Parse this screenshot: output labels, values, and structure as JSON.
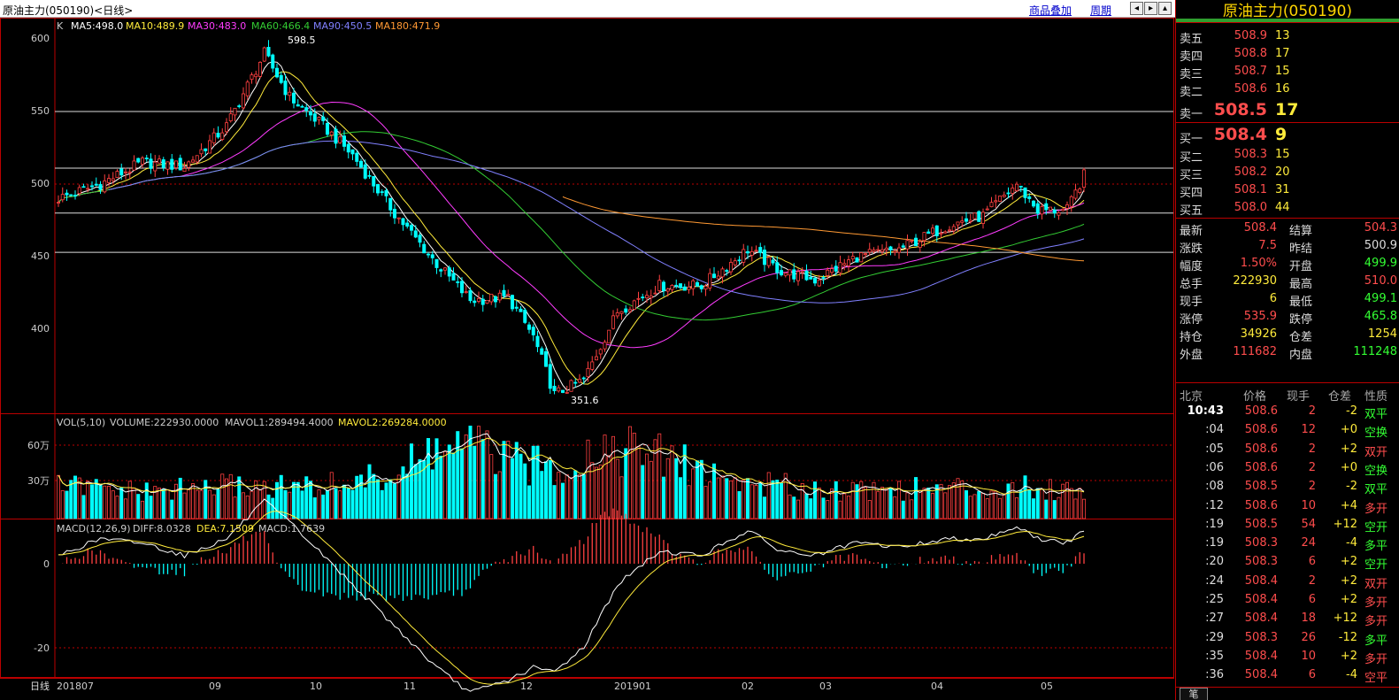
{
  "title": "原油主力(050190)<日线>",
  "toolbar": {
    "overlay": "商品叠加",
    "period": "周期"
  },
  "main_panel": {
    "indicator_label": "K",
    "ma": [
      {
        "label": "MA5:498.0",
        "color": "#ffffff"
      },
      {
        "label": "MA10:489.9",
        "color": "#ffeb3b"
      },
      {
        "label": "MA30:483.0",
        "color": "#ff3cff"
      },
      {
        "label": "MA60:466.4",
        "color": "#33cc33"
      },
      {
        "label": "MA90:450.5",
        "color": "#8080ff"
      },
      {
        "label": "MA180:471.9",
        "color": "#ff9933"
      }
    ],
    "high_label": "598.5",
    "low_label": "351.6",
    "y_ticks": [
      "600",
      "550",
      "500",
      "450",
      "400"
    ]
  },
  "volume_panel": {
    "label": "VOL(5,10)",
    "volume": "VOLUME:222930.0000",
    "mavol1": "MAVOL1:289494.4000",
    "mavol2": "MAVOL2:269284.0000",
    "y_ticks": [
      "60万",
      "30万"
    ]
  },
  "macd_panel": {
    "label": "MACD(12,26,9)",
    "diff": "DIFF:8.0328",
    "dea": "DEA:7.1509",
    "macd": "MACD:1.7639",
    "y_ticks": [
      "0",
      "-20"
    ]
  },
  "x_axis": {
    "period_label": "日线",
    "labels": [
      "201807",
      "09",
      "10",
      "11",
      "12",
      "201901",
      "02",
      "03",
      "04",
      "05"
    ]
  },
  "chart_data": {
    "type": "candlestick",
    "ylim": [
      340,
      608
    ],
    "hlines": [
      550,
      511,
      480,
      453
    ],
    "anchors": [
      [
        0,
        490
      ],
      [
        10,
        500
      ],
      [
        20,
        515
      ],
      [
        30,
        512
      ],
      [
        40,
        540
      ],
      [
        49,
        590
      ],
      [
        55,
        560
      ],
      [
        63,
        540
      ],
      [
        70,
        520
      ],
      [
        80,
        480
      ],
      [
        90,
        445
      ],
      [
        98,
        420
      ],
      [
        107,
        422
      ],
      [
        113,
        395
      ],
      [
        118,
        355
      ],
      [
        125,
        365
      ],
      [
        133,
        412
      ],
      [
        143,
        430
      ],
      [
        153,
        430
      ],
      [
        164,
        455
      ],
      [
        172,
        440
      ],
      [
        180,
        434
      ],
      [
        190,
        450
      ],
      [
        200,
        455
      ],
      [
        212,
        472
      ],
      [
        220,
        478
      ],
      [
        228,
        500
      ],
      [
        233,
        482
      ],
      [
        240,
        482
      ],
      [
        244,
        506
      ]
    ],
    "volume_anchors": [
      [
        0,
        28
      ],
      [
        20,
        22
      ],
      [
        40,
        28
      ],
      [
        60,
        26
      ],
      [
        80,
        36
      ],
      [
        90,
        60
      ],
      [
        100,
        60
      ],
      [
        110,
        45
      ],
      [
        120,
        45
      ],
      [
        130,
        62
      ],
      [
        140,
        55
      ],
      [
        150,
        45
      ],
      [
        160,
        32
      ],
      [
        180,
        25
      ],
      [
        200,
        25
      ],
      [
        230,
        26
      ],
      [
        244,
        25
      ]
    ],
    "diff_anchors": [
      [
        0,
        2
      ],
      [
        10,
        6
      ],
      [
        20,
        5
      ],
      [
        30,
        2
      ],
      [
        40,
        6
      ],
      [
        49,
        15
      ],
      [
        55,
        10
      ],
      [
        70,
        -5
      ],
      [
        90,
        -25
      ],
      [
        98,
        -31
      ],
      [
        107,
        -28
      ],
      [
        113,
        -25
      ],
      [
        118,
        -26
      ],
      [
        125,
        -20
      ],
      [
        133,
        -5
      ],
      [
        143,
        3
      ],
      [
        153,
        2
      ],
      [
        164,
        8
      ],
      [
        172,
        3
      ],
      [
        180,
        2
      ],
      [
        190,
        5
      ],
      [
        200,
        4
      ],
      [
        212,
        6
      ],
      [
        220,
        6
      ],
      [
        228,
        9
      ],
      [
        233,
        6
      ],
      [
        240,
        5
      ],
      [
        244,
        8
      ]
    ]
  },
  "right_panel": {
    "name": "原油主力(050190)",
    "asks": [
      {
        "label": "卖五",
        "price": "508.9",
        "vol": "13"
      },
      {
        "label": "卖四",
        "price": "508.8",
        "vol": "17"
      },
      {
        "label": "卖三",
        "price": "508.7",
        "vol": "15"
      },
      {
        "label": "卖二",
        "price": "508.6",
        "vol": "16"
      },
      {
        "label": "卖一",
        "price": "508.5",
        "vol": "17"
      }
    ],
    "bids": [
      {
        "label": "买一",
        "price": "508.4",
        "vol": "9"
      },
      {
        "label": "买二",
        "price": "508.3",
        "vol": "15"
      },
      {
        "label": "买三",
        "price": "508.2",
        "vol": "20"
      },
      {
        "label": "买四",
        "price": "508.1",
        "vol": "31"
      },
      {
        "label": "买五",
        "price": "508.0",
        "vol": "44"
      }
    ],
    "stats": [
      [
        {
          "k": "最新",
          "v": "508.4",
          "c": "#ff4d4d"
        },
        {
          "k": "结算",
          "v": "504.3",
          "c": "#ff4d4d"
        }
      ],
      [
        {
          "k": "涨跌",
          "v": "7.5",
          "c": "#ff4d4d"
        },
        {
          "k": "昨结",
          "v": "500.9",
          "c": "#ddd"
        }
      ],
      [
        {
          "k": "幅度",
          "v": "1.50%",
          "c": "#ff4d4d"
        },
        {
          "k": "开盘",
          "v": "499.9",
          "c": "#33ff33"
        }
      ],
      [
        {
          "k": "总手",
          "v": "222930",
          "c": "#ffeb3b"
        },
        {
          "k": "最高",
          "v": "510.0",
          "c": "#ff4d4d"
        }
      ],
      [
        {
          "k": "现手",
          "v": "6",
          "c": "#ffeb3b"
        },
        {
          "k": "最低",
          "v": "499.1",
          "c": "#33ff33"
        }
      ],
      [
        {
          "k": "涨停",
          "v": "535.9",
          "c": "#ff4d4d"
        },
        {
          "k": "跌停",
          "v": "465.8",
          "c": "#33ff33"
        }
      ],
      [
        {
          "k": "持仓",
          "v": "34926",
          "c": "#ffeb3b"
        },
        {
          "k": "仓差",
          "v": "1254",
          "c": "#ffeb3b"
        }
      ],
      [
        {
          "k": "外盘",
          "v": "111682",
          "c": "#ff4d4d"
        },
        {
          "k": "内盘",
          "v": "111248",
          "c": "#33ff33"
        }
      ]
    ],
    "trade_headers": [
      "北京",
      "价格",
      "现手",
      "仓差",
      "性质"
    ],
    "trades": [
      {
        "t": "10:43",
        "p": "508.6",
        "q": "2",
        "d": "-2",
        "n": "双平"
      },
      {
        "t": ":04",
        "p": "508.6",
        "q": "12",
        "d": "+0",
        "n": "空换"
      },
      {
        "t": ":05",
        "p": "508.6",
        "q": "2",
        "d": "+2",
        "n": "双开"
      },
      {
        "t": ":06",
        "p": "508.6",
        "q": "2",
        "d": "+0",
        "n": "空换"
      },
      {
        "t": ":08",
        "p": "508.5",
        "q": "2",
        "d": "-2",
        "n": "双平"
      },
      {
        "t": ":12",
        "p": "508.6",
        "q": "10",
        "d": "+4",
        "n": "多开"
      },
      {
        "t": ":19",
        "p": "508.5",
        "q": "54",
        "d": "+12",
        "n": "空开"
      },
      {
        "t": ":19",
        "p": "508.3",
        "q": "24",
        "d": "-4",
        "n": "多平"
      },
      {
        "t": ":20",
        "p": "508.3",
        "q": "6",
        "d": "+2",
        "n": "空开"
      },
      {
        "t": ":24",
        "p": "508.4",
        "q": "2",
        "d": "+2",
        "n": "双开"
      },
      {
        "t": ":25",
        "p": "508.4",
        "q": "6",
        "d": "+2",
        "n": "多开"
      },
      {
        "t": ":27",
        "p": "508.4",
        "q": "18",
        "d": "+12",
        "n": "多开"
      },
      {
        "t": ":29",
        "p": "508.3",
        "q": "26",
        "d": "-12",
        "n": "多平"
      },
      {
        "t": ":35",
        "p": "508.4",
        "q": "10",
        "d": "+2",
        "n": "多开"
      },
      {
        "t": ":36",
        "p": "508.4",
        "q": "6",
        "d": "-4",
        "n": "空平"
      }
    ],
    "footer_tab": "笔"
  }
}
